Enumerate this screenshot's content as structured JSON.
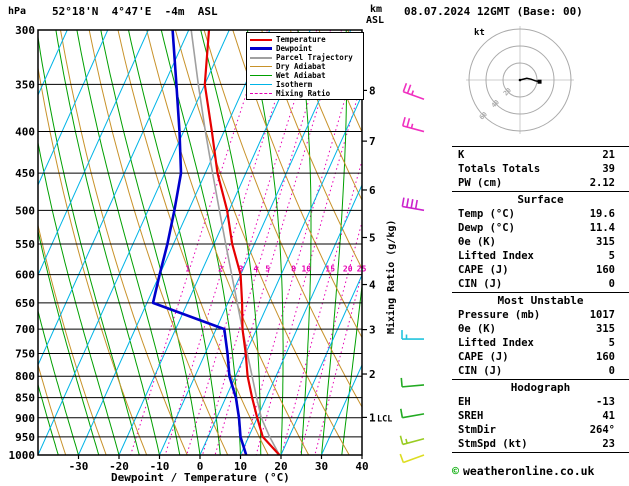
{
  "header": {
    "pressure_unit": "hPa",
    "station": "52°18'N  4°47'E  -4m  ASL",
    "datetime": "08.07.2024 12GMT (Base: 00)",
    "altitude_unit_km": "km",
    "altitude_unit_asl": "ASL"
  },
  "axes": {
    "pressure_ticks": [
      300,
      350,
      400,
      450,
      500,
      550,
      600,
      650,
      700,
      750,
      800,
      850,
      900,
      950,
      1000
    ],
    "temp_ticks": [
      -30,
      -20,
      -10,
      0,
      10,
      20,
      30,
      40
    ],
    "temp_axis_label": "Dewpoint / Temperature (°C)",
    "km_ticks": [
      {
        "km": 8,
        "p": 356
      },
      {
        "km": 7,
        "p": 411
      },
      {
        "km": 6,
        "p": 472
      },
      {
        "km": 5,
        "p": 540
      },
      {
        "km": 4,
        "p": 617
      },
      {
        "km": 3,
        "p": 701
      },
      {
        "km": 2,
        "p": 795
      },
      {
        "km": 1,
        "p": 899
      }
    ],
    "lcl_label": "LCL",
    "mixing_axis_label": "Mixing Ratio (g/kg)",
    "mixing_labels": [
      1,
      2,
      3,
      4,
      5,
      8,
      10,
      15,
      20,
      25
    ]
  },
  "colors": {
    "temperature": "#e60000",
    "dewpoint": "#0000cc",
    "parcel": "#a0a0a0",
    "dry_adiabat": "#c8922a",
    "wet_adiabat": "#00a000",
    "isotherm": "#00b4e6",
    "mixing_ratio": "#e600b4",
    "grid": "#000000"
  },
  "legend": {
    "items": [
      {
        "label": "Temperature",
        "color": "#e60000",
        "weight": 2,
        "dash": "solid"
      },
      {
        "label": "Dewpoint",
        "color": "#0000cc",
        "weight": 3,
        "dash": "solid"
      },
      {
        "label": "Parcel Trajectory",
        "color": "#a0a0a0",
        "weight": 2,
        "dash": "solid"
      },
      {
        "label": "Dry Adiabat",
        "color": "#c8922a",
        "weight": 1,
        "dash": "solid"
      },
      {
        "label": "Wet Adiabat",
        "color": "#00a000",
        "weight": 1,
        "dash": "solid"
      },
      {
        "label": "Isotherm",
        "color": "#00b4e6",
        "weight": 1,
        "dash": "solid"
      },
      {
        "label": "Mixing Ratio",
        "color": "#e600b4",
        "weight": 1,
        "dash": "dashed"
      }
    ]
  },
  "chart_data": {
    "type": "line",
    "subtype": "skew-t-log-p",
    "pressure_range": [
      300,
      1000
    ],
    "temp_range": [
      -40,
      40
    ],
    "series": [
      {
        "name": "Temperature",
        "color": "#e60000",
        "width": 2.2,
        "points": [
          [
            1000,
            19.6
          ],
          [
            950,
            13.5
          ],
          [
            900,
            10
          ],
          [
            850,
            6.5
          ],
          [
            800,
            3
          ],
          [
            750,
            0
          ],
          [
            700,
            -3.5
          ],
          [
            650,
            -6.5
          ],
          [
            600,
            -10
          ],
          [
            550,
            -15.5
          ],
          [
            500,
            -20.5
          ],
          [
            450,
            -27
          ],
          [
            400,
            -33
          ],
          [
            350,
            -40
          ],
          [
            300,
            -45
          ]
        ]
      },
      {
        "name": "Dewpoint",
        "color": "#0000cc",
        "width": 2.6,
        "points": [
          [
            1000,
            11.4
          ],
          [
            950,
            8
          ],
          [
            900,
            5.5
          ],
          [
            850,
            2.5
          ],
          [
            800,
            -1.5
          ],
          [
            750,
            -4.5
          ],
          [
            700,
            -8
          ],
          [
            650,
            -28.5
          ],
          [
            600,
            -30
          ],
          [
            550,
            -31.5
          ],
          [
            500,
            -33.5
          ],
          [
            450,
            -36
          ],
          [
            400,
            -41
          ],
          [
            350,
            -47
          ],
          [
            300,
            -54
          ]
        ]
      },
      {
        "name": "Parcel Trajectory",
        "color": "#a0a0a0",
        "width": 1.6,
        "points": [
          [
            1000,
            19.6
          ],
          [
            950,
            15.2
          ],
          [
            900,
            11.0
          ],
          [
            850,
            7.6
          ],
          [
            800,
            4.1
          ],
          [
            750,
            0.4
          ],
          [
            700,
            -3.5
          ],
          [
            650,
            -7.7
          ],
          [
            600,
            -12.2
          ],
          [
            550,
            -17.1
          ],
          [
            500,
            -22.4
          ],
          [
            450,
            -28.2
          ],
          [
            400,
            -34.6
          ],
          [
            350,
            -41.6
          ],
          [
            300,
            -49.4
          ]
        ]
      }
    ],
    "wind_barbs": [
      {
        "p": 365,
        "dir": 290,
        "spd": 25,
        "color": "#f030c0"
      },
      {
        "p": 400,
        "dir": 285,
        "spd": 25,
        "color": "#f030c0"
      },
      {
        "p": 500,
        "dir": 280,
        "spd": 40,
        "color": "#cc22cc"
      },
      {
        "p": 720,
        "dir": 270,
        "spd": 15,
        "color": "#22c4dd"
      },
      {
        "p": 820,
        "dir": 265,
        "spd": 10,
        "color": "#22aa22"
      },
      {
        "p": 890,
        "dir": 260,
        "spd": 10,
        "color": "#22aa22"
      },
      {
        "p": 955,
        "dir": 255,
        "spd": 15,
        "color": "#99cc22"
      },
      {
        "p": 1000,
        "dir": 250,
        "spd": 10,
        "color": "#dddd22"
      }
    ]
  },
  "hodograph": {
    "unit_label": "kt",
    "rings_kt": [
      20,
      40,
      60
    ],
    "ring_labels": [
      "20",
      "40",
      "60"
    ],
    "trace_kt": [
      [
        0,
        0
      ],
      [
        8,
        2
      ],
      [
        13,
        1
      ],
      [
        18,
        -1
      ],
      [
        23,
        -2
      ]
    ],
    "marker_kt": [
      23,
      -2
    ]
  },
  "panel": {
    "sections": [
      {
        "header": null,
        "rows": [
          [
            "K",
            "21"
          ],
          [
            "Totals Totals",
            "39"
          ],
          [
            "PW (cm)",
            "2.12"
          ]
        ]
      },
      {
        "header": "Surface",
        "rows": [
          [
            "Temp (°C)",
            "19.6"
          ],
          [
            "Dewp (°C)",
            "11.4"
          ],
          [
            "θe (K)",
            "315"
          ],
          [
            "Lifted Index",
            "5"
          ],
          [
            "CAPE (J)",
            "160"
          ],
          [
            "CIN (J)",
            "0"
          ]
        ]
      },
      {
        "header": "Most Unstable",
        "rows": [
          [
            "Pressure (mb)",
            "1017"
          ],
          [
            "θe (K)",
            "315"
          ],
          [
            "Lifted Index",
            "5"
          ],
          [
            "CAPE (J)",
            "160"
          ],
          [
            "CIN (J)",
            "0"
          ]
        ]
      },
      {
        "header": "Hodograph",
        "rows": [
          [
            "EH",
            "-13"
          ],
          [
            "SREH",
            "41"
          ],
          [
            "StmDir",
            "264°"
          ],
          [
            "StmSpd (kt)",
            "23"
          ]
        ]
      }
    ]
  },
  "footer": {
    "copyright_symbol": "©",
    "copyright": "weatheronline.co.uk"
  }
}
